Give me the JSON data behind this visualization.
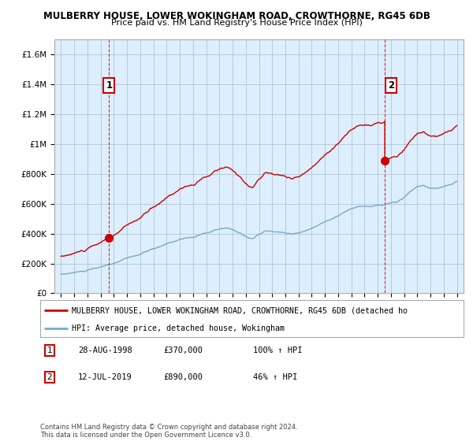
{
  "title": "MULBERRY HOUSE, LOWER WOKINGHAM ROAD, CROWTHORNE, RG45 6DB",
  "subtitle": "Price paid vs. HM Land Registry's House Price Index (HPI)",
  "ylim": [
    0,
    1700000
  ],
  "yticks": [
    0,
    200000,
    400000,
    600000,
    800000,
    1000000,
    1200000,
    1400000,
    1600000
  ],
  "ytick_labels": [
    "£0",
    "£200K",
    "£400K",
    "£600K",
    "£800K",
    "£1M",
    "£1.2M",
    "£1.4M",
    "£1.6M"
  ],
  "xlim_start": 1994.5,
  "xlim_end": 2025.5,
  "xticks": [
    1995,
    1996,
    1997,
    1998,
    1999,
    2000,
    2001,
    2002,
    2003,
    2004,
    2005,
    2006,
    2007,
    2008,
    2009,
    2010,
    2011,
    2012,
    2013,
    2014,
    2015,
    2016,
    2017,
    2018,
    2019,
    2020,
    2021,
    2022,
    2023,
    2024,
    2025
  ],
  "house_color": "#cc0000",
  "hpi_color": "#77aacc",
  "bg_plot_color": "#ddeeff",
  "marker1_x": 1998.65,
  "marker1_y": 370000,
  "marker2_x": 2019.53,
  "marker2_y": 890000,
  "label1_date": "28-AUG-1998",
  "label1_price": "£370,000",
  "label1_hpi": "100% ↑ HPI",
  "label2_date": "12-JUL-2019",
  "label2_price": "£890,000",
  "label2_hpi": "46% ↑ HPI",
  "legend_house": "MULBERRY HOUSE, LOWER WOKINGHAM ROAD, CROWTHORNE, RG45 6DB (detached ho",
  "legend_hpi": "HPI: Average price, detached house, Wokingham",
  "footer": "Contains HM Land Registry data © Crown copyright and database right 2024.\nThis data is licensed under the Open Government Licence v3.0.",
  "bg_color": "#ffffff",
  "grid_color": "#aabbcc"
}
